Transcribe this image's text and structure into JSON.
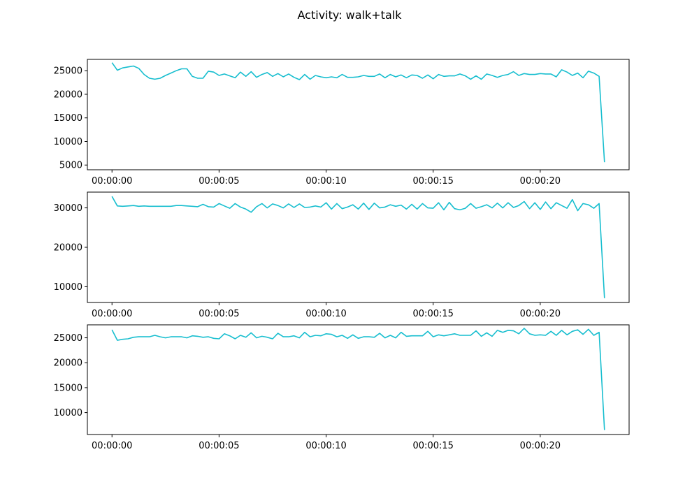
{
  "chart_data": {
    "title": "Activity: walk+talk",
    "type": "line",
    "series_color": "#17becf",
    "x_unit": "seconds",
    "x_tick_labels": [
      "00:00:00",
      "00:00:05",
      "00:00:10",
      "00:00:15",
      "00:00:20"
    ],
    "panels": [
      {
        "ylim": [
          4000,
          27400
        ],
        "y_ticks": [
          5000,
          10000,
          15000,
          20000,
          25000
        ],
        "y_tick_labels": [
          "5000",
          "10000",
          "15000",
          "20000",
          "25000"
        ],
        "x": [
          0.0,
          0.25,
          0.5,
          0.75,
          1.0,
          1.25,
          1.5,
          1.75,
          2.0,
          2.25,
          2.5,
          2.75,
          3.0,
          3.25,
          3.5,
          3.75,
          4.0,
          4.25,
          4.5,
          4.75,
          5.0,
          5.25,
          5.5,
          5.75,
          6.0,
          6.25,
          6.5,
          6.75,
          7.0,
          7.25,
          7.5,
          7.75,
          8.0,
          8.25,
          8.5,
          8.75,
          9.0,
          9.25,
          9.5,
          9.75,
          10.0,
          10.25,
          10.5,
          10.75,
          11.0,
          11.25,
          11.5,
          11.75,
          12.0,
          12.25,
          12.5,
          12.75,
          13.0,
          13.25,
          13.5,
          13.75,
          14.0,
          14.25,
          14.5,
          14.75,
          15.0,
          15.25,
          15.5,
          15.75,
          16.0,
          16.25,
          16.5,
          16.75,
          17.0,
          17.25,
          17.5,
          17.75,
          18.0,
          18.25,
          18.5,
          18.75,
          19.0,
          19.25,
          19.5,
          19.75,
          20.0,
          20.25,
          20.5,
          20.75,
          21.0,
          21.25,
          21.5,
          21.75,
          22.0,
          22.25,
          22.5,
          22.75,
          23.0
        ],
        "y": [
          26700,
          25100,
          25600,
          25800,
          26000,
          25500,
          24200,
          23400,
          23200,
          23400,
          24000,
          24500,
          25000,
          25400,
          25400,
          23800,
          23400,
          23400,
          24900,
          24700,
          24000,
          24300,
          23900,
          23500,
          24700,
          23800,
          24800,
          23600,
          24200,
          24600,
          23800,
          24400,
          23700,
          24300,
          23600,
          23100,
          24200,
          23200,
          24000,
          23700,
          23500,
          23700,
          23500,
          24200,
          23600,
          23600,
          23700,
          24000,
          23800,
          23800,
          24300,
          23500,
          24200,
          23700,
          24100,
          23500,
          24100,
          24000,
          23400,
          24100,
          23300,
          24200,
          23800,
          23900,
          23900,
          24300,
          23900,
          23200,
          23900,
          23200,
          24300,
          24000,
          23600,
          24000,
          24200,
          24800,
          24000,
          24400,
          24200,
          24200,
          24400,
          24300,
          24300,
          23700,
          25200,
          24700,
          24000,
          24500,
          23500,
          24900,
          24500,
          23800,
          5600
        ]
      },
      {
        "ylim": [
          6000,
          34000
        ],
        "y_ticks": [
          10000,
          20000,
          30000
        ],
        "y_tick_labels": [
          "10000",
          "20000",
          "30000"
        ],
        "x": [
          0.0,
          0.25,
          0.5,
          0.75,
          1.0,
          1.25,
          1.5,
          1.75,
          2.0,
          2.25,
          2.5,
          2.75,
          3.0,
          3.25,
          3.5,
          3.75,
          4.0,
          4.25,
          4.5,
          4.75,
          5.0,
          5.25,
          5.5,
          5.75,
          6.0,
          6.25,
          6.5,
          6.75,
          7.0,
          7.25,
          7.5,
          7.75,
          8.0,
          8.25,
          8.5,
          8.75,
          9.0,
          9.25,
          9.5,
          9.75,
          10.0,
          10.25,
          10.5,
          10.75,
          11.0,
          11.25,
          11.5,
          11.75,
          12.0,
          12.25,
          12.5,
          12.75,
          13.0,
          13.25,
          13.5,
          13.75,
          14.0,
          14.25,
          14.5,
          14.75,
          15.0,
          15.25,
          15.5,
          15.75,
          16.0,
          16.25,
          16.5,
          16.75,
          17.0,
          17.25,
          17.5,
          17.75,
          18.0,
          18.25,
          18.5,
          18.75,
          19.0,
          19.25,
          19.5,
          19.75,
          20.0,
          20.25,
          20.5,
          20.75,
          21.0,
          21.25,
          21.5,
          21.75,
          22.0,
          22.25,
          22.5,
          22.75,
          23.0
        ],
        "y": [
          32900,
          30500,
          30400,
          30500,
          30600,
          30400,
          30500,
          30400,
          30400,
          30400,
          30400,
          30400,
          30600,
          30600,
          30500,
          30400,
          30300,
          30900,
          30300,
          30200,
          31100,
          30500,
          29900,
          31100,
          30200,
          29700,
          28900,
          30300,
          31100,
          30000,
          31000,
          30600,
          30000,
          31000,
          30100,
          31000,
          30100,
          30200,
          30500,
          30200,
          31300,
          29700,
          31100,
          29800,
          30200,
          30800,
          29700,
          31200,
          29600,
          31200,
          30000,
          30200,
          30800,
          30400,
          30700,
          29700,
          30900,
          29700,
          31100,
          30000,
          29900,
          31300,
          29500,
          31400,
          29800,
          29500,
          29900,
          31100,
          29900,
          30300,
          30800,
          30000,
          31200,
          30000,
          31300,
          30100,
          30600,
          31600,
          29800,
          31300,
          29600,
          31500,
          29800,
          31300,
          30600,
          29900,
          32100,
          29300,
          31100,
          30800,
          29900,
          31100,
          7100
        ]
      },
      {
        "ylim": [
          5600,
          27600
        ],
        "y_ticks": [
          10000,
          15000,
          20000,
          25000
        ],
        "y_tick_labels": [
          "10000",
          "15000",
          "20000",
          "25000"
        ],
        "x": [
          0.0,
          0.25,
          0.5,
          0.75,
          1.0,
          1.25,
          1.5,
          1.75,
          2.0,
          2.25,
          2.5,
          2.75,
          3.0,
          3.25,
          3.5,
          3.75,
          4.0,
          4.25,
          4.5,
          4.75,
          5.0,
          5.25,
          5.5,
          5.75,
          6.0,
          6.25,
          6.5,
          6.75,
          7.0,
          7.25,
          7.5,
          7.75,
          8.0,
          8.25,
          8.5,
          8.75,
          9.0,
          9.25,
          9.5,
          9.75,
          10.0,
          10.25,
          10.5,
          10.75,
          11.0,
          11.25,
          11.5,
          11.75,
          12.0,
          12.25,
          12.5,
          12.75,
          13.0,
          13.25,
          13.5,
          13.75,
          14.0,
          14.25,
          14.5,
          14.75,
          15.0,
          15.25,
          15.5,
          15.75,
          16.0,
          16.25,
          16.5,
          16.75,
          17.0,
          17.25,
          17.5,
          17.75,
          18.0,
          18.25,
          18.5,
          18.75,
          19.0,
          19.25,
          19.5,
          19.75,
          20.0,
          20.25,
          20.5,
          20.75,
          21.0,
          21.25,
          21.5,
          21.75,
          22.0,
          22.25,
          22.5,
          22.75,
          23.0
        ],
        "y": [
          26600,
          24500,
          24700,
          24800,
          25100,
          25200,
          25200,
          25200,
          25500,
          25200,
          25000,
          25200,
          25200,
          25200,
          25000,
          25400,
          25300,
          25100,
          25200,
          24900,
          24800,
          25800,
          25400,
          24800,
          25500,
          25100,
          26000,
          25000,
          25300,
          25100,
          24800,
          25900,
          25200,
          25200,
          25400,
          25000,
          26100,
          25200,
          25500,
          25400,
          25800,
          25700,
          25200,
          25500,
          24900,
          25600,
          24900,
          25200,
          25200,
          25100,
          25900,
          25000,
          25500,
          25000,
          26100,
          25300,
          25400,
          25400,
          25400,
          26300,
          25200,
          25600,
          25400,
          25600,
          25800,
          25500,
          25500,
          25500,
          26400,
          25300,
          26000,
          25300,
          26500,
          26100,
          26500,
          26400,
          25800,
          26900,
          25800,
          25500,
          25600,
          25500,
          26300,
          25500,
          26500,
          25600,
          26300,
          26600,
          25700,
          26700,
          25500,
          26100,
          6500
        ]
      }
    ]
  }
}
